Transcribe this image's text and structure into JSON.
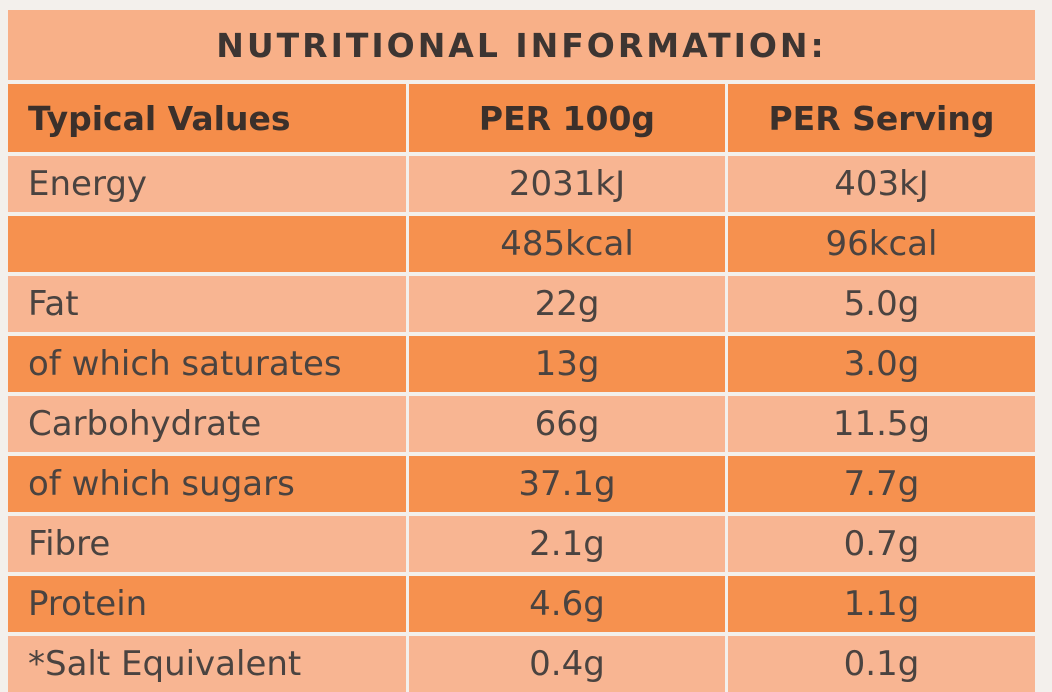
{
  "title": "NUTRITIONAL INFORMATION:",
  "headers": [
    "Typical Values",
    "PER 100g",
    "PER Serving"
  ],
  "rows": [
    {
      "label": "Energy",
      "per_100g": "2031kJ",
      "per_serving": "403kJ"
    },
    {
      "label": "",
      "per_100g": "485kcal",
      "per_serving": "96kcal"
    },
    {
      "label": "Fat",
      "per_100g": "22g",
      "per_serving": "5.0g"
    },
    {
      "label": "of which saturates",
      "per_100g": "13g",
      "per_serving": "3.0g"
    },
    {
      "label": "Carbohydrate",
      "per_100g": "66g",
      "per_serving": "11.5g"
    },
    {
      "label": "of which sugars",
      "per_100g": "37.1g",
      "per_serving": "7.7g"
    },
    {
      "label": "Fibre",
      "per_100g": "2.1g",
      "per_serving": "0.7g"
    },
    {
      "label": "Protein",
      "per_100g": "4.6g",
      "per_serving": "1.1g"
    },
    {
      "label": "*Salt Equivalent",
      "per_100g": "0.4g",
      "per_serving": "0.1g"
    }
  ],
  "colors": {
    "background": "#f3f0ec",
    "title_band": "#f8b088",
    "header_band": "#f58d4a",
    "row_light": "#f8b592",
    "row_dark": "#f6914f",
    "text": "#4a4340"
  }
}
